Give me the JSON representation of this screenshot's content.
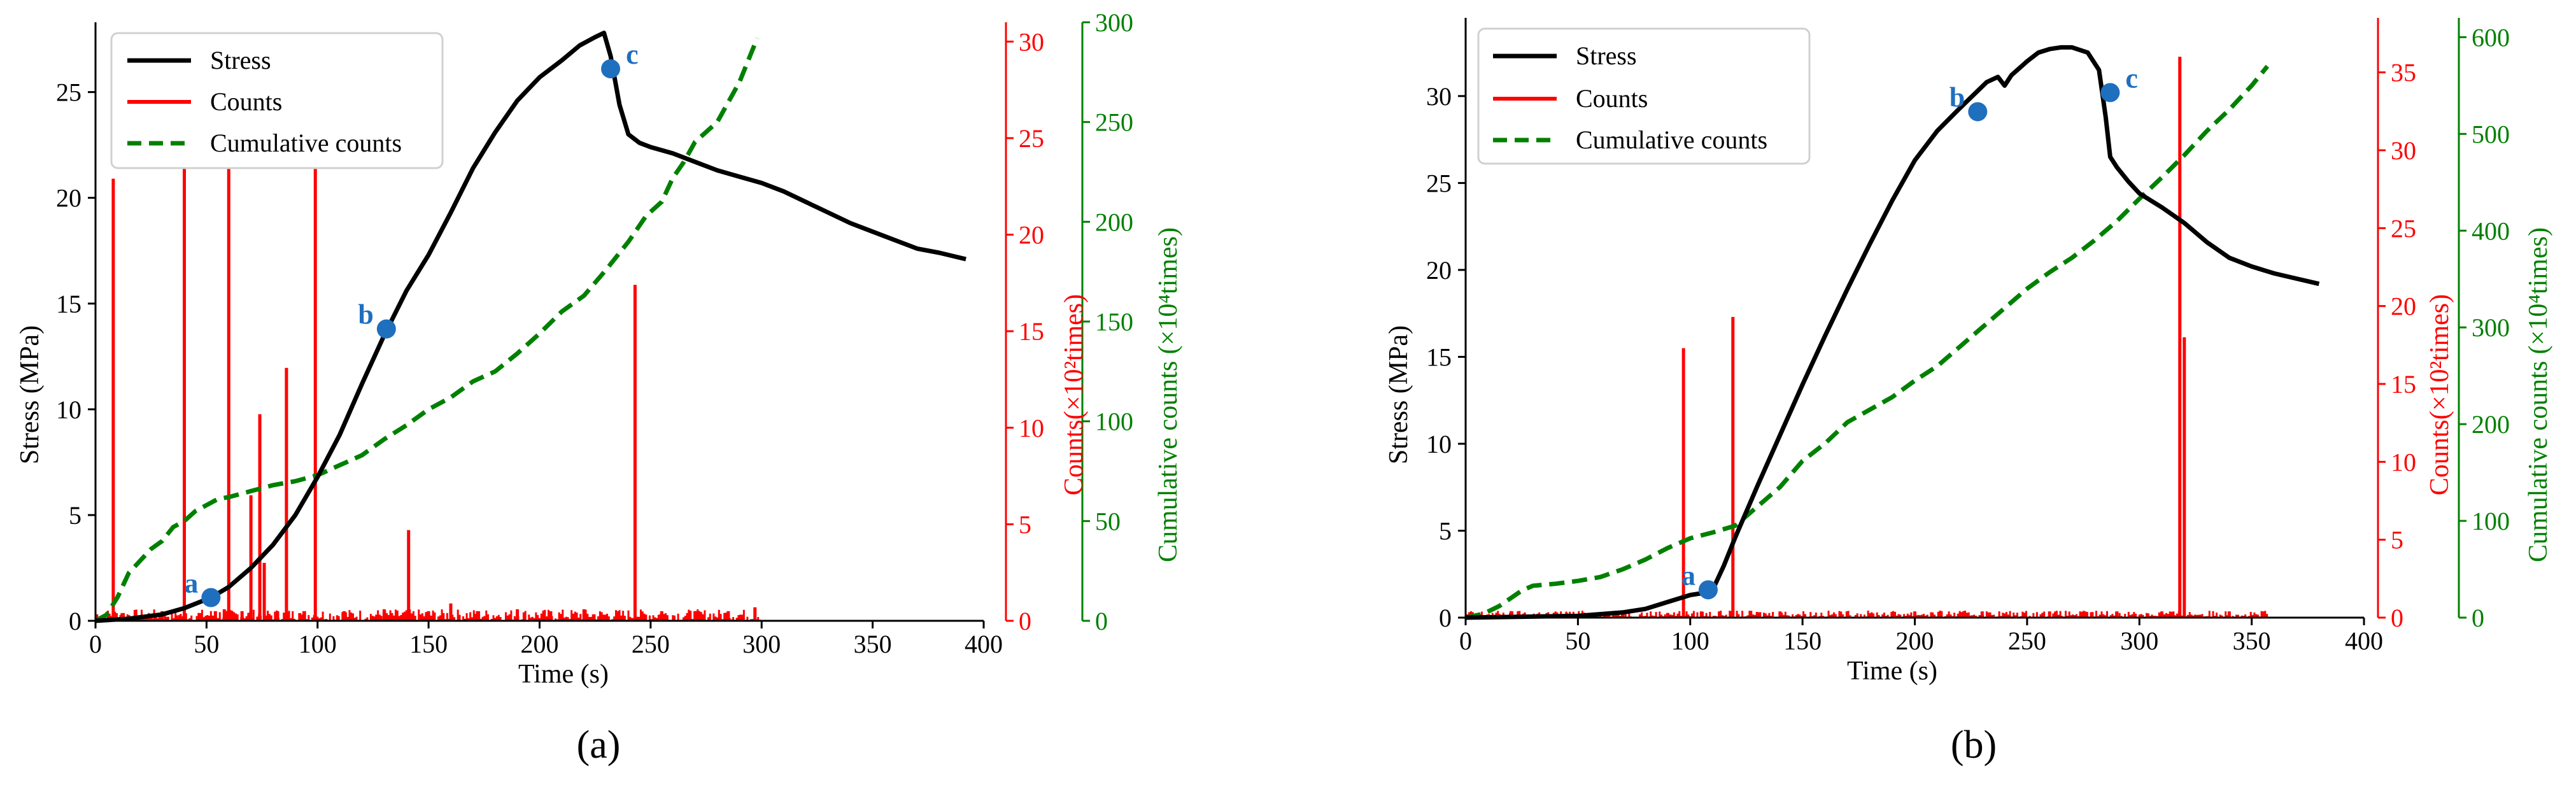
{
  "chart_data": [
    {
      "type": "line",
      "panel_label": "(a)",
      "xlabel": "Time (s)",
      "xlim": [
        0,
        400
      ],
      "xticks": [
        0,
        50,
        100,
        150,
        200,
        250,
        300,
        350,
        400
      ],
      "y_left": {
        "label": "Stress (MPa)",
        "lim": [
          0,
          28.3
        ],
        "ticks": [
          0,
          5,
          10,
          15,
          20,
          25
        ]
      },
      "y_right1": {
        "label": "Counts(×10²times)",
        "lim": [
          0,
          31
        ],
        "ticks": [
          0,
          5,
          10,
          15,
          20,
          25,
          30
        ]
      },
      "y_right2": {
        "label": "Cumulative counts (×10⁴times)",
        "lim": [
          0,
          300
        ],
        "ticks": [
          0,
          50,
          100,
          150,
          200,
          250,
          300
        ]
      },
      "legend": {
        "position": "top-left",
        "entries": [
          "Stress",
          "Counts",
          "Cumulative counts"
        ]
      },
      "series": [
        {
          "name": "Stress",
          "axis": "left",
          "color": "#000000",
          "style": "solid",
          "x": [
            0,
            15,
            30,
            40,
            52,
            60,
            70,
            80,
            90,
            100,
            110,
            120,
            130,
            140,
            150,
            160,
            170,
            180,
            190,
            200,
            210,
            218,
            225,
            229,
            232,
            236,
            240,
            245,
            250,
            260,
            270,
            280,
            290,
            300,
            310,
            320,
            330,
            340,
            350,
            360,
            370,
            380,
            392
          ],
          "y": [
            0,
            0.1,
            0.3,
            0.6,
            1.1,
            1.6,
            2.5,
            3.6,
            5.0,
            6.8,
            8.8,
            11.2,
            13.5,
            15.6,
            17.3,
            19.3,
            21.4,
            23.1,
            24.6,
            25.7,
            26.5,
            27.2,
            27.6,
            27.8,
            26.7,
            24.4,
            23.0,
            22.6,
            22.4,
            22.1,
            21.7,
            21.3,
            21.0,
            20.7,
            20.3,
            19.8,
            19.3,
            18.8,
            18.4,
            18.0,
            17.6,
            17.4,
            17.1
          ]
        },
        {
          "name": "Counts",
          "axis": "right1",
          "color": "#ff0000",
          "style": "solid",
          "x": [
            8,
            12,
            18,
            25,
            30,
            38,
            40,
            47,
            54,
            58,
            60,
            66,
            70,
            74,
            76,
            82,
            86,
            92,
            99,
            112,
            130,
            141,
            150,
            160,
            172,
            190,
            205,
            220,
            235,
            243,
            255,
            270,
            285,
            297
          ],
          "y": [
            22.9,
            0.4,
            0.3,
            0.3,
            0.5,
            0.3,
            27.2,
            0.4,
            0.5,
            0.6,
            27.3,
            0.5,
            6.5,
            10.7,
            3.0,
            0.5,
            13.1,
            0.4,
            29.0,
            0.5,
            0.6,
            4.7,
            0.5,
            0.9,
            0.5,
            0.6,
            0.5,
            0.6,
            0.5,
            17.4,
            0.5,
            0.5,
            0.5,
            0.7
          ],
          "baseline_noise_x_range": [
            0,
            300
          ],
          "baseline_noise_level": 0.6
        },
        {
          "name": "Cumulative counts",
          "axis": "right2",
          "color": "#008000",
          "style": "dashed",
          "x": [
            0,
            5,
            10,
            15,
            20,
            25,
            30,
            35,
            40,
            45,
            50,
            55,
            60,
            70,
            80,
            90,
            100,
            110,
            120,
            130,
            140,
            150,
            160,
            170,
            180,
            190,
            200,
            210,
            220,
            230,
            240,
            248,
            255,
            260,
            265,
            270,
            280,
            290,
            298
          ],
          "y": [
            0,
            3,
            12,
            24,
            30,
            36,
            40,
            47,
            50,
            55,
            58,
            61,
            62,
            65,
            68,
            70,
            73,
            78,
            83,
            91,
            98,
            106,
            112,
            120,
            125,
            134,
            144,
            155,
            163,
            176,
            190,
            203,
            210,
            222,
            230,
            240,
            250,
            270,
            292
          ]
        }
      ],
      "annotations": [
        {
          "label": "a",
          "x": 52,
          "y": 1.1
        },
        {
          "label": "b",
          "x": 131,
          "y": 13.8
        },
        {
          "label": "c",
          "x": 232,
          "y": 26.1
        }
      ]
    },
    {
      "type": "line",
      "panel_label": "(b)",
      "xlabel": "Time (s)",
      "xlim": [
        0,
        400
      ],
      "xticks": [
        0,
        50,
        100,
        150,
        200,
        250,
        300,
        350,
        400
      ],
      "y_left": {
        "label": "Stress (MPa)",
        "lim": [
          0,
          34.5
        ],
        "ticks": [
          0,
          5,
          10,
          15,
          20,
          25,
          30
        ]
      },
      "y_right1": {
        "label": "Counts(×10²times)",
        "lim": [
          0,
          38.5
        ],
        "ticks": [
          0,
          5,
          10,
          15,
          20,
          25,
          30,
          35
        ]
      },
      "y_right2": {
        "label": "Cumulative counts (×10⁴times)",
        "lim": [
          0,
          620
        ],
        "ticks": [
          0,
          100,
          200,
          300,
          400,
          500,
          600
        ]
      },
      "legend": {
        "position": "top-left",
        "entries": [
          "Stress",
          "Counts",
          "Cumulative counts"
        ]
      },
      "series": [
        {
          "name": "Stress",
          "axis": "left",
          "color": "#000000",
          "style": "solid",
          "x": [
            0,
            50,
            70,
            80,
            90,
            100,
            105,
            110,
            115,
            120,
            130,
            140,
            150,
            160,
            170,
            180,
            190,
            200,
            210,
            220,
            228,
            232,
            237,
            240,
            243,
            250,
            255,
            260,
            265,
            270,
            277,
            282,
            285,
            287,
            290,
            295,
            300,
            310,
            320,
            330,
            340,
            350,
            360,
            370,
            380
          ],
          "y": [
            0,
            0.1,
            0.3,
            0.5,
            0.9,
            1.3,
            1.4,
            1.6,
            3.0,
            4.6,
            7.6,
            10.5,
            13.4,
            16.2,
            18.9,
            21.5,
            24.0,
            26.3,
            28.0,
            29.3,
            30.3,
            30.8,
            31.1,
            30.6,
            31.2,
            32.0,
            32.5,
            32.7,
            32.8,
            32.8,
            32.5,
            31.5,
            28.8,
            26.5,
            25.9,
            25.1,
            24.4,
            23.6,
            22.7,
            21.6,
            20.7,
            20.2,
            19.8,
            19.5,
            19.2
          ]
        },
        {
          "name": "Counts",
          "axis": "right1",
          "color": "#ff0000",
          "style": "solid",
          "x": [
            20,
            45,
            70,
            90,
            97,
            105,
            113,
            119,
            140,
            170,
            200,
            230,
            260,
            290,
            310,
            318,
            320,
            340,
            355
          ],
          "y": [
            0.3,
            0.3,
            0.3,
            0.3,
            17.3,
            0.4,
            0.4,
            19.3,
            0.4,
            0.4,
            0.4,
            0.4,
            0.4,
            0.4,
            0.4,
            36.0,
            18.0,
            0.4,
            0.4
          ],
          "baseline_noise_x_range": [
            0,
            357
          ],
          "baseline_noise_level": 0.45
        },
        {
          "name": "Cumulative counts",
          "axis": "right2",
          "color": "#008000",
          "style": "dashed",
          "x": [
            0,
            8,
            15,
            20,
            25,
            30,
            40,
            50,
            60,
            70,
            80,
            90,
            100,
            110,
            120,
            130,
            140,
            150,
            160,
            170,
            180,
            190,
            200,
            210,
            220,
            230,
            240,
            250,
            260,
            270,
            280,
            290,
            300,
            310,
            320,
            330,
            340,
            350,
            357
          ],
          "y": [
            0,
            4,
            12,
            20,
            28,
            33,
            35,
            38,
            42,
            50,
            60,
            72,
            82,
            88,
            95,
            115,
            135,
            162,
            180,
            202,
            215,
            228,
            245,
            260,
            280,
            300,
            320,
            340,
            357,
            372,
            390,
            410,
            433,
            455,
            478,
            503,
            525,
            550,
            570
          ]
        }
      ],
      "annotations": [
        {
          "label": "a",
          "x": 108,
          "y": 1.6
        },
        {
          "label": "b",
          "x": 228,
          "y": 29.1
        },
        {
          "label": "c",
          "x": 287,
          "y": 30.2
        }
      ]
    }
  ],
  "colors": {
    "stress": "#000000",
    "counts": "#ff0000",
    "cumulative": "#008000",
    "marker": "#1f6fbf"
  }
}
